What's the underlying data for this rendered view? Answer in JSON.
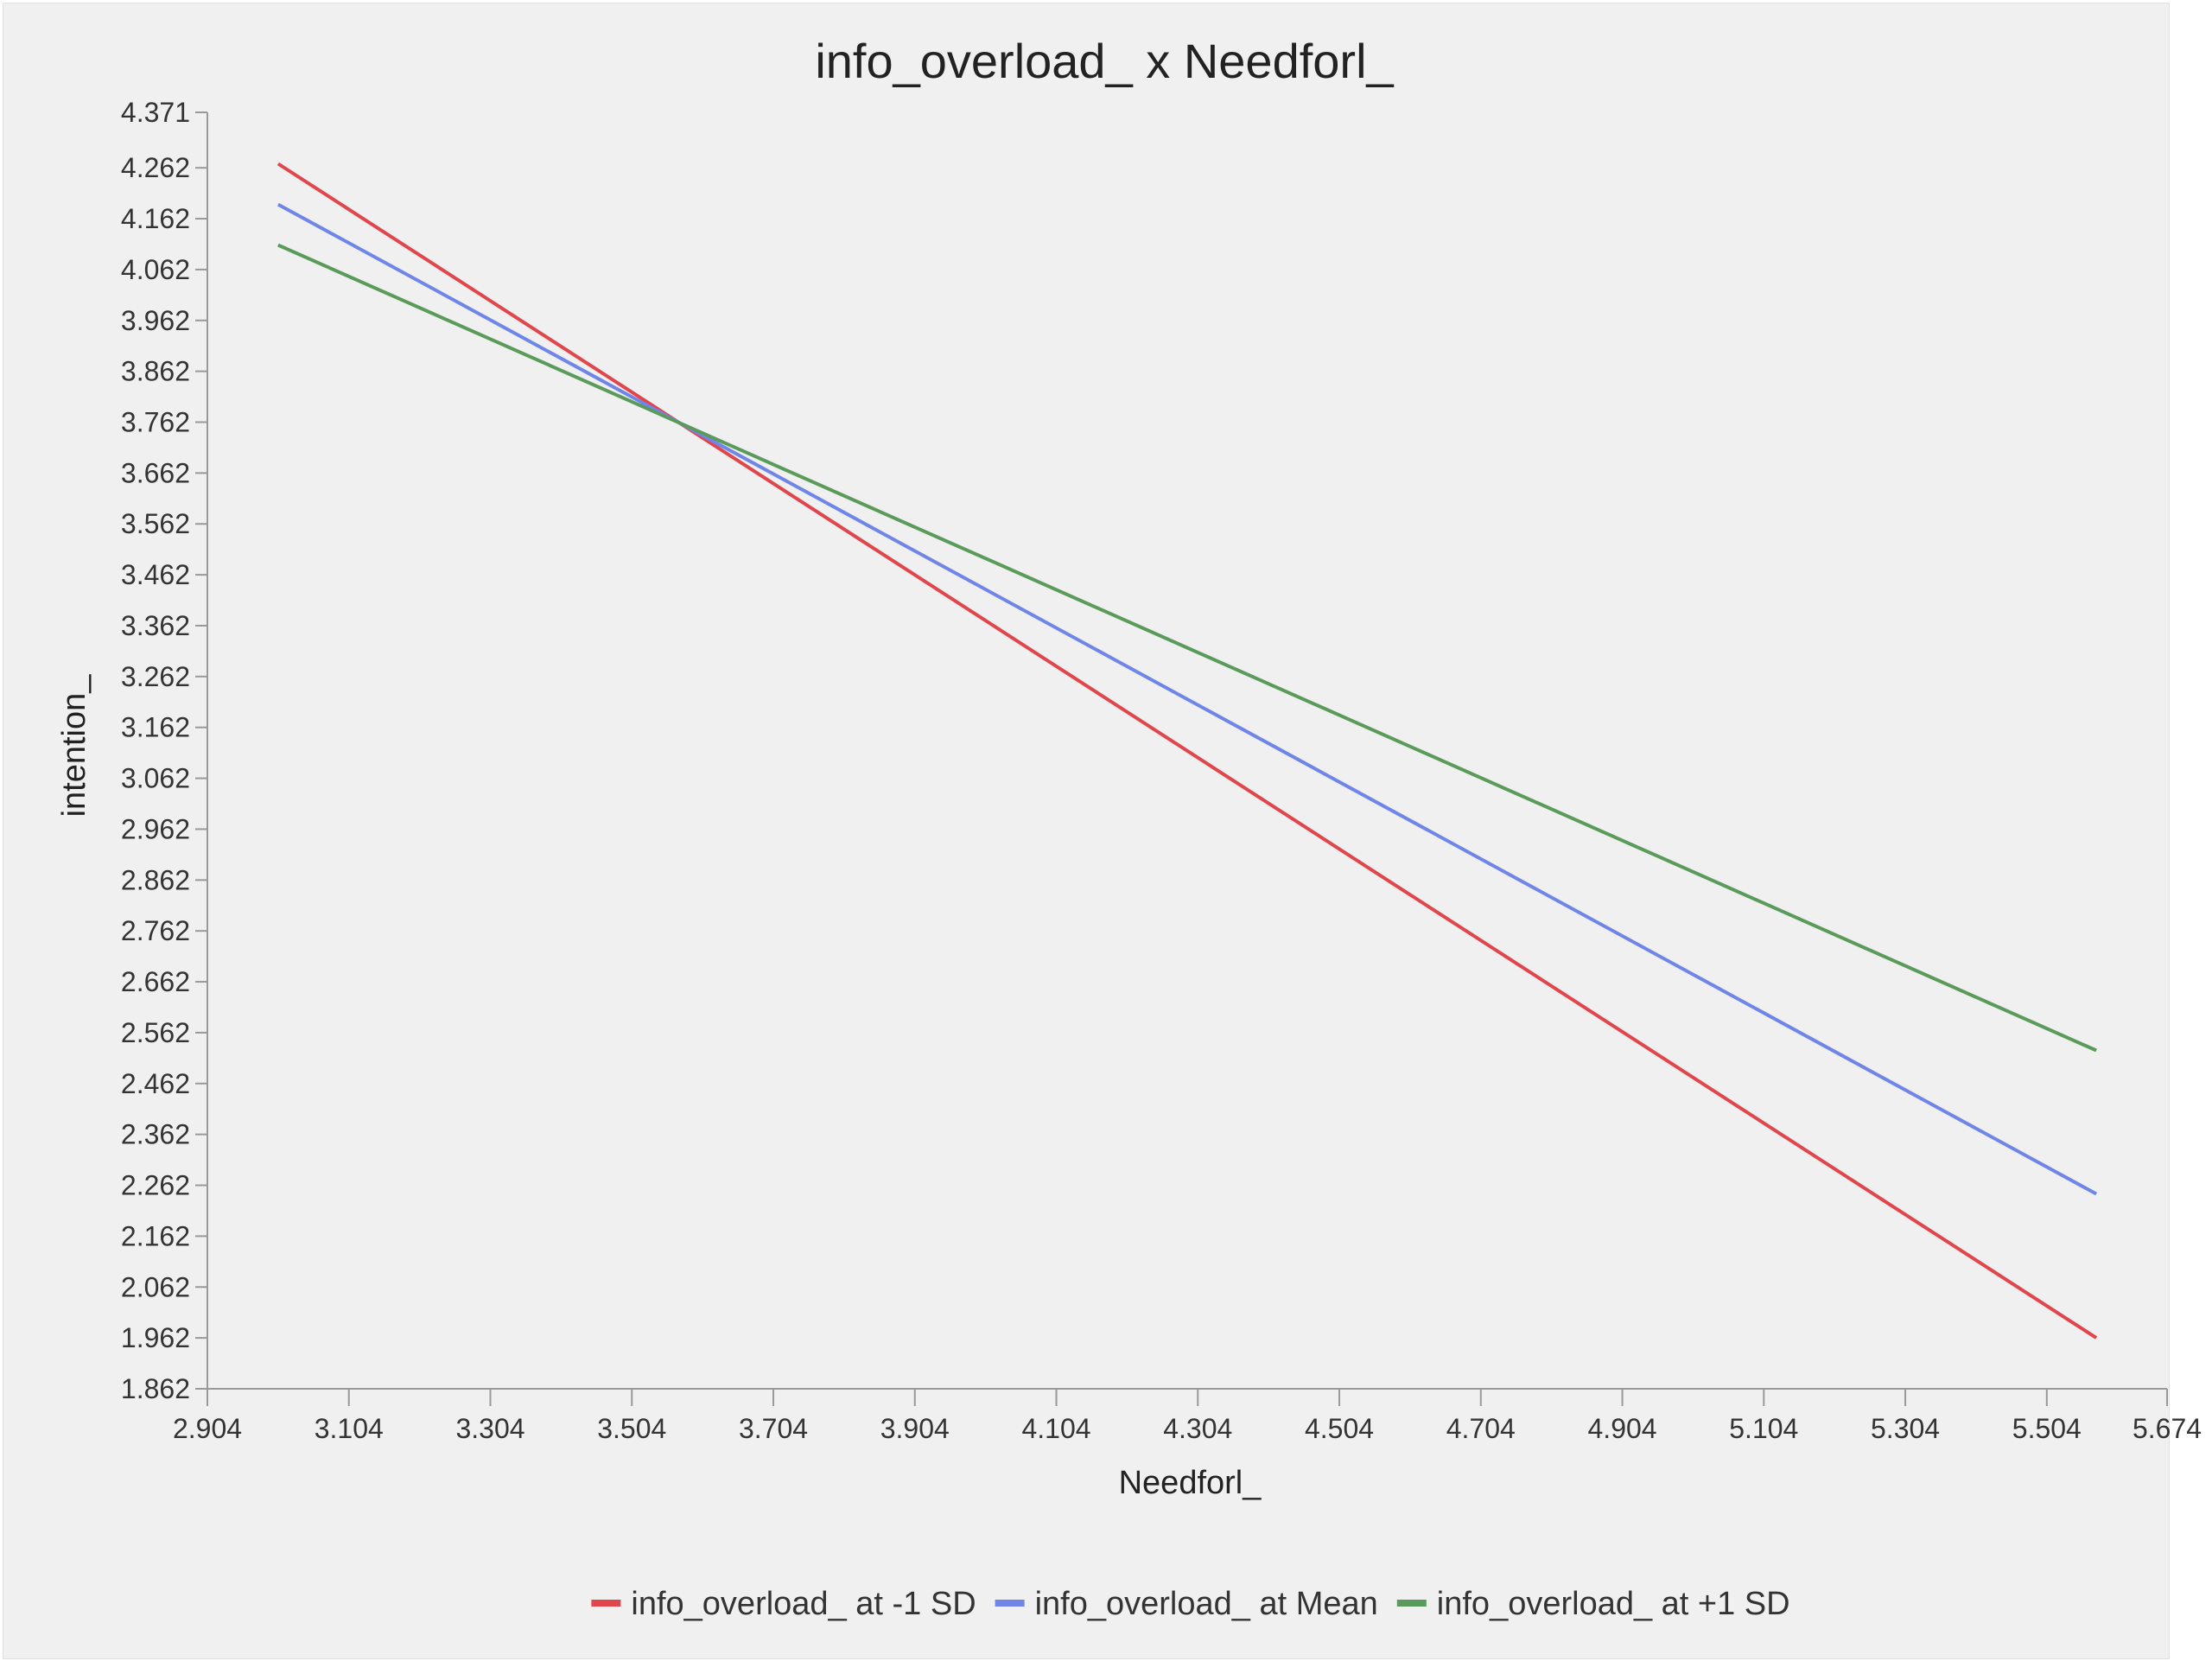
{
  "chart_data": {
    "type": "line",
    "title": "info_overload_ x Needforl_",
    "xlabel": "Needforl_",
    "ylabel": "intention_",
    "xlim": [
      2.904,
      5.674
    ],
    "ylim": [
      1.862,
      4.371
    ],
    "x_ticks": [
      "2.904",
      "3.104",
      "3.304",
      "3.504",
      "3.704",
      "3.904",
      "4.104",
      "4.304",
      "4.504",
      "4.704",
      "4.904",
      "5.104",
      "5.304",
      "5.504",
      "5.674"
    ],
    "y_ticks": [
      "4.371",
      "4.262",
      "4.162",
      "4.062",
      "3.962",
      "3.862",
      "3.762",
      "3.662",
      "3.562",
      "3.462",
      "3.362",
      "3.262",
      "3.162",
      "3.062",
      "2.962",
      "2.862",
      "2.762",
      "2.662",
      "2.562",
      "2.462",
      "2.362",
      "2.262",
      "2.162",
      "2.062",
      "1.962",
      "1.862"
    ],
    "grid": false,
    "legend_position": "bottom",
    "series": [
      {
        "name": "info_overload_ at -1 SD",
        "color": "#e0464b",
        "x": [
          3.004,
          5.574
        ],
        "y": [
          4.27,
          1.962
        ]
      },
      {
        "name": "info_overload_ at Mean",
        "color": "#6f86e8",
        "x": [
          3.004,
          5.574
        ],
        "y": [
          4.19,
          2.245
        ]
      },
      {
        "name": "info_overload_ at +1 SD",
        "color": "#5a9a5a",
        "x": [
          3.004,
          5.574
        ],
        "y": [
          4.11,
          2.527
        ]
      }
    ]
  }
}
